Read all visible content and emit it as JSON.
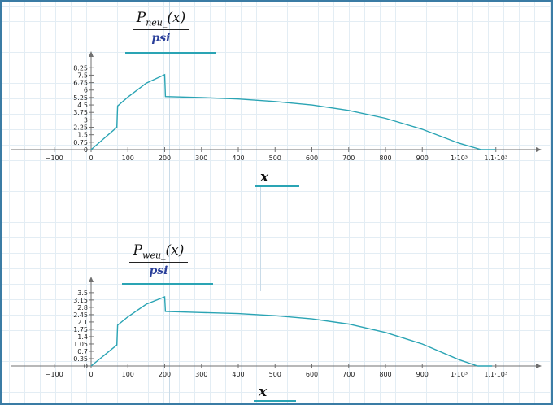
{
  "region1": {
    "num_main": "P",
    "num_sub": "neu_",
    "num_arg": "(x)",
    "denominator": "psi",
    "xlabel": "x"
  },
  "region2": {
    "num_main": "P",
    "num_sub": "weu_",
    "num_arg": "(x)",
    "denominator": "psi",
    "xlabel": "x"
  },
  "colors": {
    "curve": "#2aa4b4",
    "axis": "#707070",
    "frame": "#3a7ca5"
  },
  "chart_data": [
    {
      "type": "line",
      "x_ticks": [
        "−100",
        "0",
        "100",
        "200",
        "300",
        "400",
        "500",
        "600",
        "700",
        "800",
        "900",
        "1·10³",
        "1.1·10³"
      ],
      "y_ticks": [
        "0",
        "0.75",
        "1.5",
        "2.25",
        "3",
        "3.75",
        "4.5",
        "5.25",
        "6",
        "6.75",
        "7.5",
        "8.25"
      ],
      "xlim": [
        -120,
        1220
      ],
      "ylim": [
        0,
        8.6
      ],
      "grid": false,
      "series": [
        {
          "points": [
            [
              0,
              0
            ],
            [
              70,
              2.25
            ],
            [
              72,
              4.4
            ],
            [
              100,
              5.3
            ],
            [
              150,
              6.7
            ],
            [
              200,
              7.55
            ],
            [
              202,
              5.35
            ],
            [
              300,
              5.25
            ],
            [
              400,
              5.1
            ],
            [
              500,
              4.85
            ],
            [
              600,
              4.5
            ],
            [
              700,
              3.95
            ],
            [
              800,
              3.15
            ],
            [
              900,
              2.05
            ],
            [
              1000,
              0.65
            ],
            [
              1060,
              0
            ]
          ]
        }
      ]
    },
    {
      "type": "line",
      "x_ticks": [
        "−100",
        "0",
        "100",
        "200",
        "300",
        "400",
        "500",
        "600",
        "700",
        "800",
        "900",
        "1·10³",
        "1.1·10³"
      ],
      "y_ticks": [
        "0",
        "0.35",
        "0.7",
        "1.05",
        "1.4",
        "1.75",
        "2.1",
        "2.45",
        "2.8",
        "3.15",
        "3.5"
      ],
      "xlim": [
        -120,
        1220
      ],
      "ylim": [
        0,
        3.65
      ],
      "grid": false,
      "series": [
        {
          "points": [
            [
              0,
              0
            ],
            [
              70,
              1
            ],
            [
              72,
              1.95
            ],
            [
              100,
              2.35
            ],
            [
              150,
              2.95
            ],
            [
              200,
              3.3
            ],
            [
              202,
              2.6
            ],
            [
              300,
              2.55
            ],
            [
              400,
              2.5
            ],
            [
              500,
              2.4
            ],
            [
              600,
              2.25
            ],
            [
              700,
              2
            ],
            [
              800,
              1.6
            ],
            [
              900,
              1.05
            ],
            [
              1000,
              0.3
            ],
            [
              1050,
              0
            ]
          ]
        }
      ]
    }
  ]
}
